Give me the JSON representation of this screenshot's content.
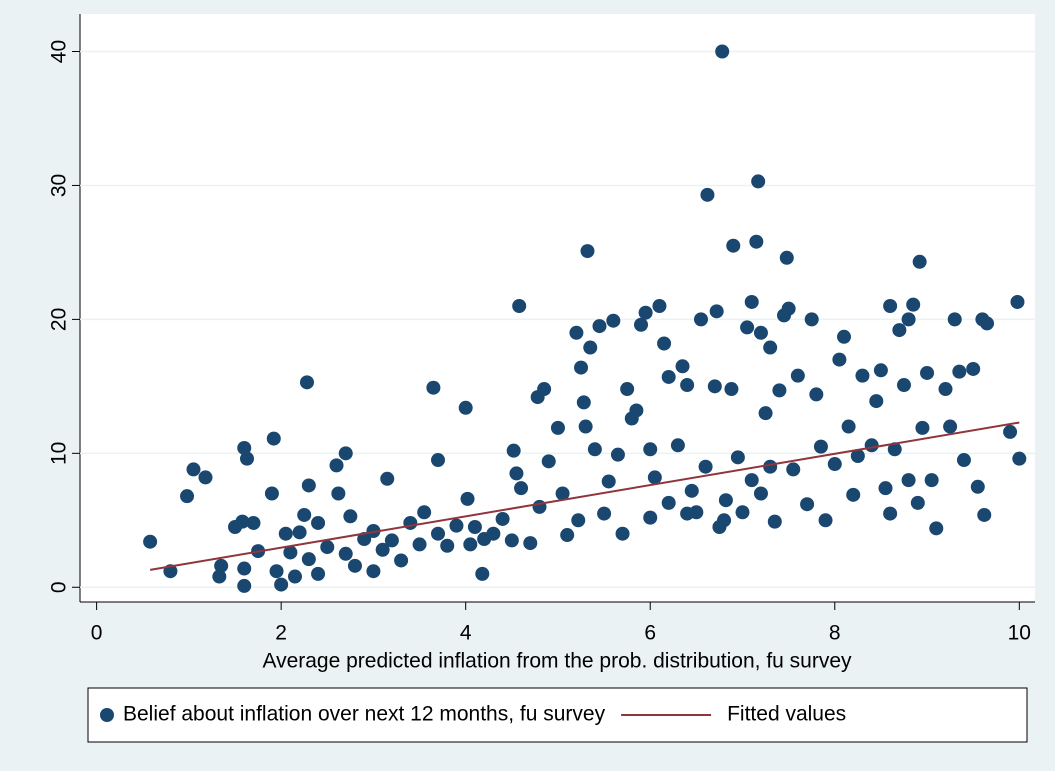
{
  "chart_data": {
    "type": "scatter",
    "x_label": "Average predicted inflation from the prob. distribution, fu survey",
    "xlim": [
      -0.18,
      10.17
    ],
    "ylim": [
      -1.1,
      42.8
    ],
    "xticks": [
      0,
      2,
      4,
      6,
      8,
      10
    ],
    "yticks": [
      0,
      10,
      20,
      30,
      40
    ],
    "grid": true,
    "legend": "bottom",
    "series": [
      {
        "name": "Belief about inflation over next 12 months, fu survey",
        "type": "scatter",
        "color": "#1a476f",
        "x": [
          0.58,
          0.8,
          0.98,
          1.05,
          1.18,
          1.33,
          1.35,
          1.5,
          1.58,
          1.6,
          1.63,
          1.6,
          1.6,
          1.7,
          1.75,
          1.9,
          1.92,
          1.95,
          2.0,
          2.05,
          2.1,
          2.15,
          2.2,
          2.25,
          2.28,
          2.3,
          2.3,
          2.4,
          2.4,
          2.5,
          2.6,
          2.62,
          2.7,
          2.7,
          2.75,
          2.8,
          2.9,
          3.0,
          3.0,
          3.1,
          3.15,
          3.2,
          3.3,
          3.4,
          3.5,
          3.55,
          3.65,
          3.7,
          3.7,
          3.8,
          3.9,
          4.0,
          4.02,
          4.05,
          4.1,
          4.18,
          4.2,
          4.3,
          4.4,
          4.5,
          4.52,
          4.55,
          4.58,
          4.6,
          4.7,
          4.78,
          4.8,
          4.85,
          4.9,
          5.0,
          5.05,
          5.1,
          5.2,
          5.22,
          5.25,
          5.28,
          5.3,
          5.32,
          5.35,
          5.4,
          5.45,
          5.5,
          5.55,
          5.6,
          5.65,
          5.7,
          5.75,
          5.8,
          5.85,
          5.9,
          5.95,
          6.0,
          6.0,
          6.05,
          6.1,
          6.15,
          6.2,
          6.2,
          6.3,
          6.35,
          6.4,
          6.45,
          6.5,
          6.55,
          6.6,
          6.62,
          6.7,
          6.72,
          6.75,
          6.78,
          6.82,
          6.88,
          6.9,
          6.95,
          7.0,
          7.05,
          7.1,
          7.15,
          7.17,
          7.2,
          7.2,
          7.25,
          7.3,
          7.35,
          7.4,
          7.45,
          7.48,
          7.5,
          7.55,
          7.6,
          7.7,
          7.75,
          7.8,
          7.85,
          7.9,
          8.0,
          8.05,
          8.1,
          8.15,
          8.2,
          8.25,
          8.3,
          8.4,
          8.45,
          8.5,
          8.55,
          8.6,
          8.65,
          8.7,
          8.75,
          8.8,
          8.85,
          8.9,
          8.92,
          8.95,
          9.0,
          9.05,
          9.1,
          9.2,
          9.25,
          9.3,
          9.35,
          9.4,
          9.5,
          9.55,
          9.6,
          9.62,
          9.65,
          9.9,
          9.98,
          10.0,
          7.3,
          6.8,
          7.1,
          6.4,
          8.8,
          8.6
        ],
        "values": [
          3.4,
          1.2,
          6.8,
          8.8,
          8.2,
          0.8,
          1.6,
          4.5,
          4.9,
          10.4,
          9.6,
          0.1,
          1.4,
          4.8,
          2.7,
          7.0,
          11.1,
          1.2,
          0.2,
          4.0,
          2.6,
          0.8,
          4.1,
          5.4,
          15.3,
          7.6,
          2.1,
          4.8,
          1.0,
          3.0,
          9.1,
          7.0,
          10.0,
          2.5,
          5.3,
          1.6,
          3.6,
          4.2,
          1.2,
          2.8,
          8.1,
          3.5,
          2.0,
          4.8,
          3.2,
          5.6,
          14.9,
          9.5,
          4.0,
          3.1,
          4.6,
          13.4,
          6.6,
          3.2,
          4.5,
          1.0,
          3.6,
          4.0,
          5.1,
          3.5,
          10.2,
          8.5,
          21.0,
          7.4,
          3.3,
          14.2,
          6.0,
          14.8,
          9.4,
          11.9,
          7.0,
          3.9,
          19.0,
          5.0,
          16.4,
          13.8,
          12.0,
          25.1,
          17.9,
          10.3,
          19.5,
          5.5,
          7.9,
          19.9,
          9.9,
          4.0,
          14.8,
          12.6,
          13.2,
          19.6,
          20.5,
          10.3,
          5.2,
          8.2,
          21.0,
          18.2,
          15.7,
          6.3,
          10.6,
          16.5,
          15.1,
          7.2,
          5.6,
          20.0,
          9.0,
          29.3,
          15.0,
          20.6,
          4.5,
          40.0,
          6.5,
          14.8,
          25.5,
          9.7,
          5.6,
          19.4,
          21.3,
          25.8,
          30.3,
          19.0,
          7.0,
          13.0,
          17.9,
          4.9,
          14.7,
          20.3,
          24.6,
          20.8,
          8.8,
          15.8,
          6.2,
          20.0,
          14.4,
          10.5,
          5.0,
          9.2,
          17.0,
          18.7,
          12.0,
          6.9,
          9.8,
          15.8,
          10.6,
          13.9,
          16.2,
          7.4,
          21.0,
          10.3,
          19.2,
          15.1,
          20.0,
          21.1,
          6.3,
          24.3,
          11.9,
          16.0,
          8.0,
          4.4,
          14.8,
          12.0,
          20.0,
          16.1,
          9.5,
          16.3,
          7.5,
          20.0,
          5.4,
          19.7,
          11.6,
          21.3,
          9.6,
          9.0,
          5.0,
          8.0,
          5.5,
          8.0,
          5.5
        ]
      },
      {
        "name": "Fitted values",
        "type": "line",
        "color": "#90353b",
        "x": [
          0.58,
          10.0
        ],
        "values": [
          1.3,
          12.3
        ]
      }
    ]
  }
}
